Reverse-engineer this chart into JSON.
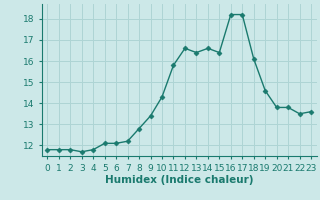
{
  "x": [
    0,
    1,
    2,
    3,
    4,
    5,
    6,
    7,
    8,
    9,
    10,
    11,
    12,
    13,
    14,
    15,
    16,
    17,
    18,
    19,
    20,
    21,
    22,
    23
  ],
  "y": [
    11.8,
    11.8,
    11.8,
    11.7,
    11.8,
    12.1,
    12.1,
    12.2,
    12.8,
    13.4,
    14.3,
    15.8,
    16.6,
    16.4,
    16.6,
    16.4,
    18.2,
    18.2,
    16.1,
    14.6,
    13.8,
    13.8,
    13.5,
    13.6
  ],
  "line_color": "#1a7a6e",
  "marker_color": "#1a7a6e",
  "bg_color": "#cce8e8",
  "grid_color": "#aed4d4",
  "xlabel": "Humidex (Indice chaleur)",
  "ylabel_ticks": [
    12,
    13,
    14,
    15,
    16,
    17,
    18
  ],
  "ylim": [
    11.5,
    18.7
  ],
  "xlim": [
    -0.5,
    23.5
  ],
  "tick_color": "#1a7a6e",
  "label_color": "#1a7a6e",
  "font_size": 6.5,
  "xlabel_fontsize": 7.5,
  "marker_size": 2.5,
  "linewidth": 1.0
}
